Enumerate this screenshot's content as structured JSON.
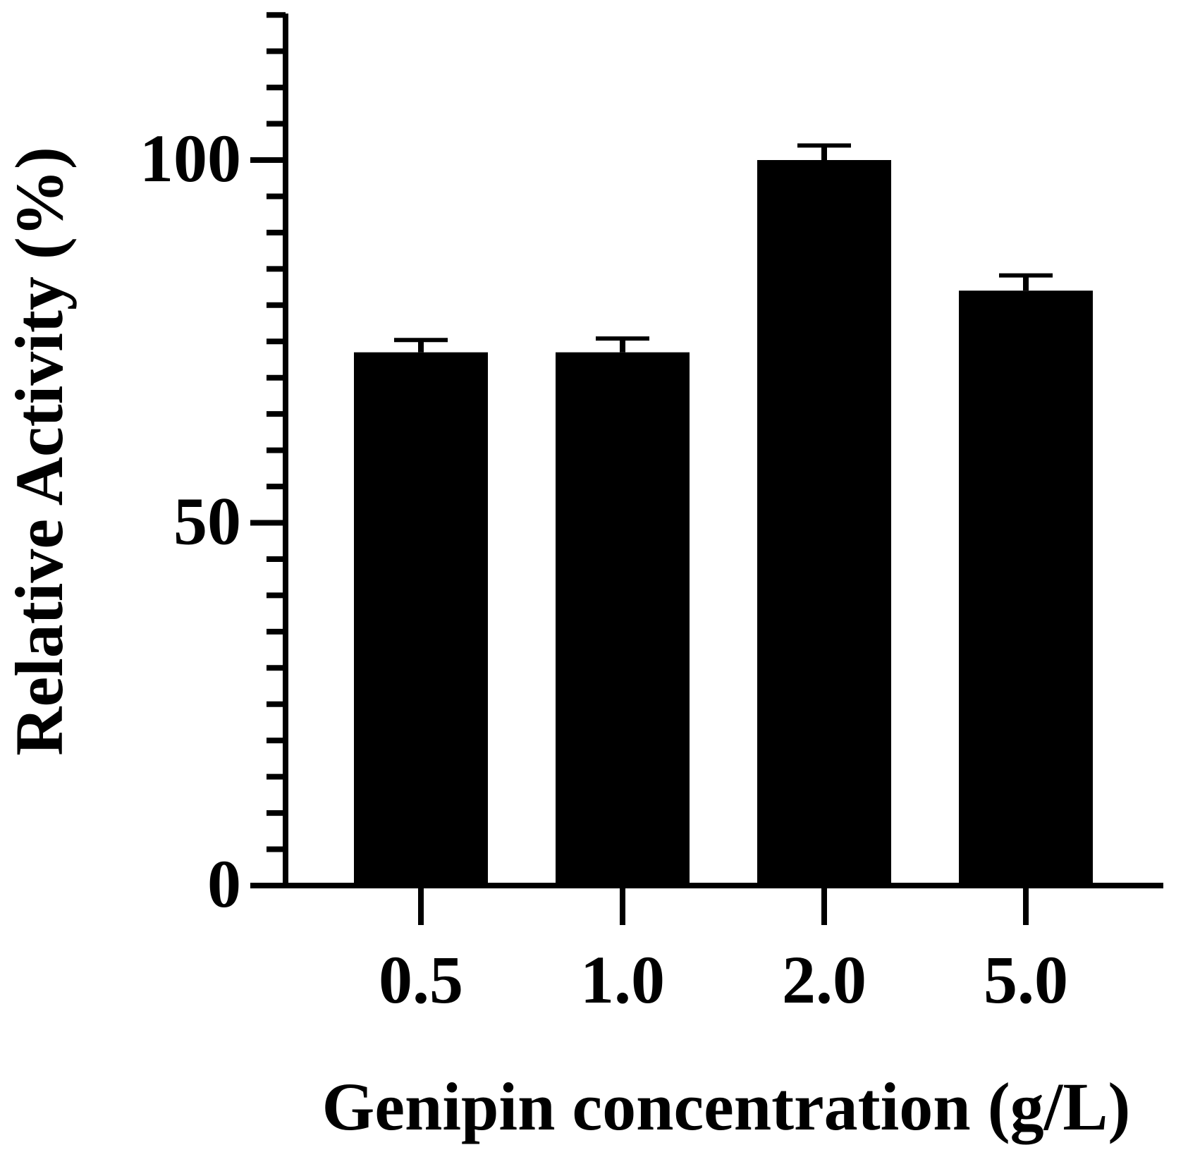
{
  "chart_data": {
    "type": "bar",
    "categories": [
      "0.5",
      "1.0",
      "2.0",
      "5.0"
    ],
    "values": [
      73.5,
      73.5,
      100.0,
      82.0
    ],
    "errors": [
      1.7,
      1.9,
      2.0,
      2.1
    ],
    "xlabel": "Genipin concentration (g/L)",
    "ylabel": "Relative Activity (%)",
    "ylim": [
      0,
      120
    ],
    "yticks": [
      0,
      50,
      100
    ],
    "minor_tick_step": 5,
    "grid": false,
    "bar_color": "#000000"
  }
}
